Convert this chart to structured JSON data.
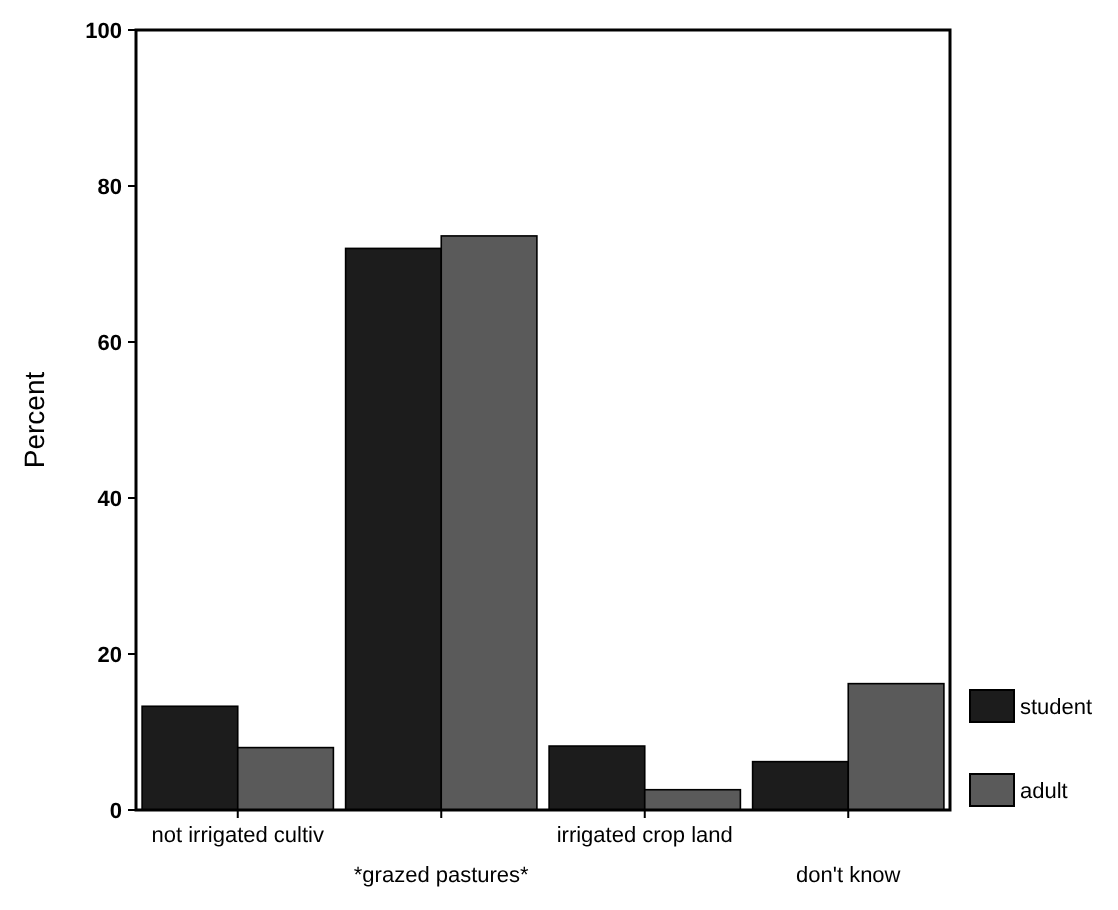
{
  "chart_data": {
    "type": "bar",
    "ylabel": "Percent",
    "categories": [
      "not irrigated cultiv",
      "*grazed pastures*",
      "irrigated crop land",
      "don't know"
    ],
    "series": [
      {
        "name": "student",
        "color": "#1c1c1c",
        "values": [
          13.3,
          72,
          8.2,
          6.2
        ]
      },
      {
        "name": "adult",
        "color": "#5a5a5a",
        "values": [
          8,
          73.6,
          2.6,
          16.2
        ]
      }
    ],
    "ylim": [
      0,
      100
    ],
    "yticks": [
      0,
      20,
      40,
      60,
      80,
      100
    ],
    "grid": false,
    "legend": "bottom right"
  }
}
